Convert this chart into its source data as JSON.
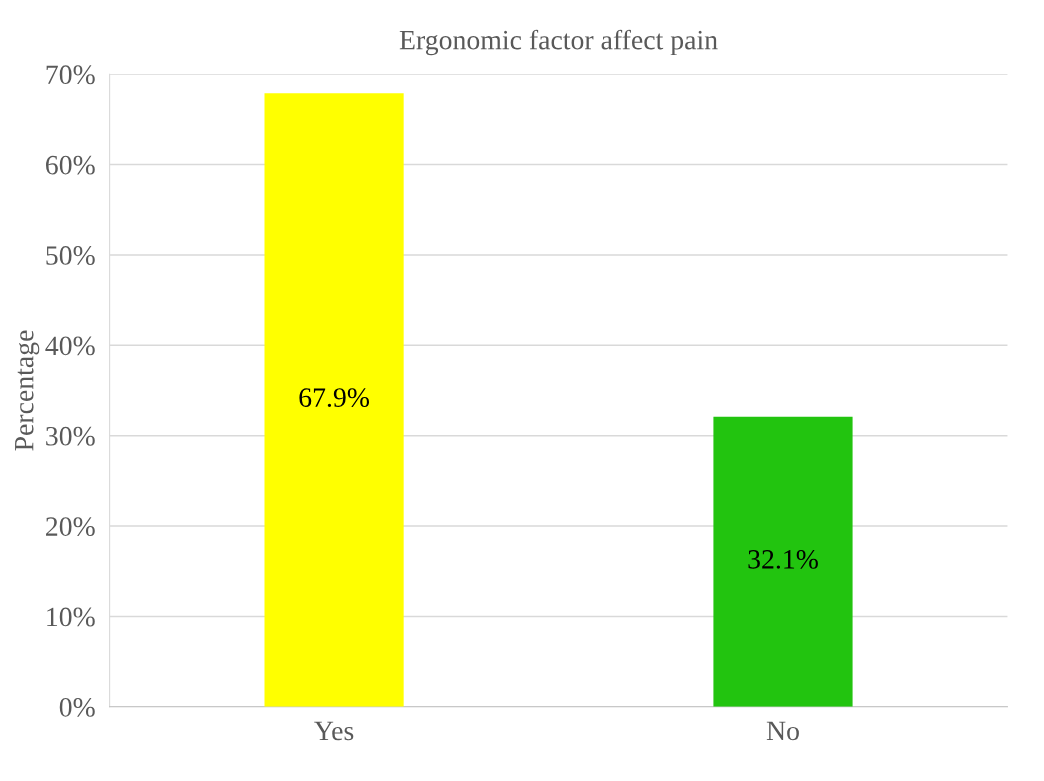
{
  "chart_data": {
    "type": "bar",
    "title": "Ergonomic factor affect pain",
    "ylabel": "Percentage",
    "categories": [
      "Yes",
      "No"
    ],
    "values": [
      67.9,
      32.1
    ],
    "colors": [
      "#ffff00",
      "#22c40f"
    ],
    "value_labels": [
      "67.9%",
      "32.1%"
    ],
    "ylim": [
      0,
      70
    ],
    "yticks": [
      {
        "value": 0,
        "label": "0%"
      },
      {
        "value": 10,
        "label": "10%"
      },
      {
        "value": 20,
        "label": "20%"
      },
      {
        "value": 30,
        "label": "30%"
      },
      {
        "value": 40,
        "label": "40%"
      },
      {
        "value": 50,
        "label": "50%"
      },
      {
        "value": 60,
        "label": "60%"
      },
      {
        "value": 70,
        "label": "70%"
      }
    ],
    "grid": "y",
    "legend": false
  }
}
